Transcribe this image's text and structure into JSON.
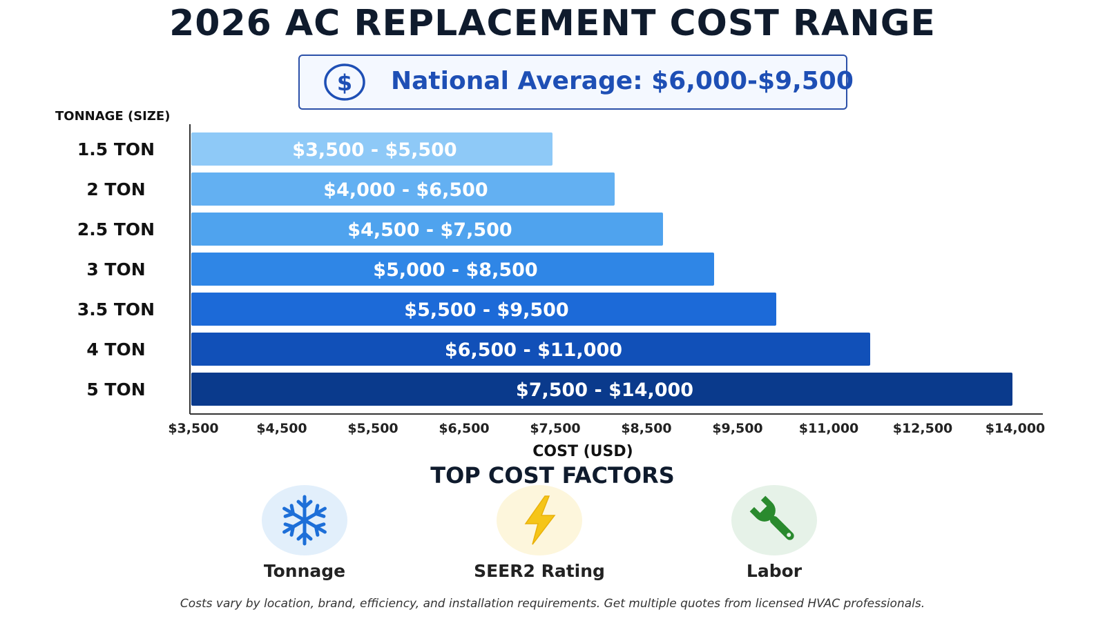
{
  "title": "2026 AC REPLACEMENT COST RANGE",
  "national_average": "National Average: $6,000-$9,500",
  "chart_data": {
    "type": "bar",
    "orientation": "horizontal",
    "ylabel": "TONNAGE (SIZE)",
    "xlabel": "COST (USD)",
    "x_ticks": [
      "$3,500",
      "$4,500",
      "$5,500",
      "$6,500",
      "$7,500",
      "$8,500",
      "$9,500",
      "$11,000",
      "$12,500",
      "$14,000"
    ],
    "categories": [
      "1.5 TON",
      "2 TON",
      "2.5 TON",
      "3 TON",
      "3.5 TON",
      "4 TON",
      "5 TON"
    ],
    "ranges": [
      [
        3500,
        5500
      ],
      [
        4000,
        6500
      ],
      [
        4500,
        7500
      ],
      [
        5000,
        8500
      ],
      [
        5500,
        9500
      ],
      [
        6500,
        11000
      ],
      [
        7500,
        14000
      ]
    ],
    "labels": [
      "$3,500 - $5,500",
      "$4,000 - $6,500",
      "$4,500 - $7,500",
      "$5,000 - $8,500",
      "$5,500 - $9,500",
      "$6,500 - $11,000",
      "$7,500 - $14,000"
    ],
    "colors": [
      "#8ec9f7",
      "#63b0f2",
      "#4fa3ee",
      "#2f86e6",
      "#1c6ad8",
      "#1150b8",
      "#0a3a8c"
    ]
  },
  "factors": {
    "title": "TOP COST FACTORS",
    "items": [
      {
        "label": "Tonnage",
        "icon": "snowflake-icon",
        "bg": "#e2effb",
        "color": "#1d6fd8"
      },
      {
        "label": "SEER2 Rating",
        "icon": "lightning-icon",
        "bg": "#fdf6dc",
        "color": "#f5c518"
      },
      {
        "label": "Labor",
        "icon": "wrench-icon",
        "bg": "#e6f2e8",
        "color": "#2a8a2e"
      }
    ]
  },
  "footnote": "Costs vary by location, brand, efficiency, and installation requirements. Get multiple quotes from licensed HVAC professionals."
}
